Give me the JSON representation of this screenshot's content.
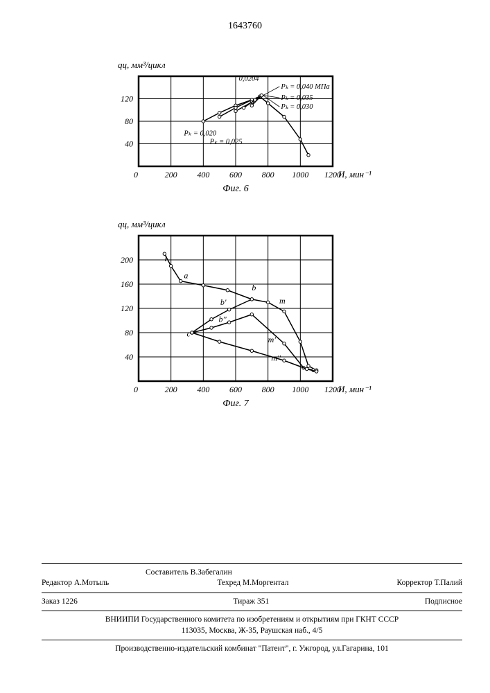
{
  "page_number": "1643760",
  "fig6": {
    "ylabel": "qц, мм³/цикл",
    "xlabel": "И, мин⁻¹",
    "caption": "Фиг. 6",
    "xlim": [
      0,
      1200
    ],
    "ylim": [
      0,
      160
    ],
    "xticks": [
      0,
      200,
      400,
      600,
      800,
      1000,
      1200
    ],
    "yticks": [
      40,
      80,
      120
    ],
    "grid_color": "#000000",
    "line_color": "#000000",
    "marker_radius": 2.2,
    "series": {
      "p020": {
        "label": "Pₖ = 0,020",
        "points": [
          [
            400,
            80
          ],
          [
            500,
            95
          ],
          [
            600,
            108
          ],
          [
            700,
            118
          ],
          [
            750,
            124
          ],
          [
            800,
            112
          ],
          [
            900,
            88
          ],
          [
            1000,
            48
          ],
          [
            1050,
            20
          ]
        ]
      },
      "p025": {
        "label": "Pₖ = 0,025",
        "points": [
          [
            500,
            88
          ],
          [
            600,
            104
          ],
          [
            700,
            118
          ],
          [
            750,
            124
          ]
        ]
      },
      "p030": {
        "label": "Pₖ = 0,030",
        "points": [
          [
            600,
            98
          ],
          [
            700,
            114
          ],
          [
            750,
            124
          ]
        ]
      },
      "p035": {
        "label": "Pₖ = 0,035",
        "points": [
          [
            650,
            104
          ],
          [
            720,
            118
          ],
          [
            760,
            126
          ]
        ]
      },
      "p040": {
        "label": "Pₖ = 0,040 МПа",
        "points": [
          [
            700,
            108
          ],
          [
            760,
            126
          ]
        ]
      }
    },
    "topnote": "0,0204",
    "label_positions": {
      "p020": [
        280,
        55
      ],
      "p025": [
        440,
        40
      ],
      "topnote": [
        620,
        152
      ],
      "p040": [
        880,
        138
      ],
      "p035": [
        880,
        118
      ],
      "p030": [
        880,
        102
      ]
    }
  },
  "fig7": {
    "ylabel": "qц, мм³/цикл",
    "xlabel": "И, мин⁻¹",
    "caption": "Фиг. 7",
    "xlim": [
      0,
      1200
    ],
    "ylim": [
      0,
      240
    ],
    "xticks": [
      0,
      200,
      400,
      600,
      800,
      1000,
      1200
    ],
    "yticks": [
      40,
      80,
      120,
      160,
      200
    ],
    "grid_color": "#000000",
    "line_color": "#000000",
    "marker_radius": 2.2,
    "series": {
      "main": {
        "points": [
          [
            160,
            210
          ],
          [
            200,
            190
          ],
          [
            260,
            165
          ],
          [
            400,
            158
          ],
          [
            550,
            150
          ],
          [
            700,
            135
          ],
          [
            800,
            130
          ],
          [
            900,
            115
          ],
          [
            1000,
            65
          ],
          [
            1050,
            25
          ],
          [
            1100,
            18
          ]
        ]
      },
      "bp": {
        "points": [
          [
            330,
            80
          ],
          [
            450,
            102
          ],
          [
            560,
            118
          ],
          [
            700,
            135
          ]
        ]
      },
      "bpp": {
        "points": [
          [
            330,
            80
          ],
          [
            450,
            88
          ],
          [
            560,
            97
          ],
          [
            700,
            110
          ],
          [
            900,
            62
          ],
          [
            1020,
            22
          ],
          [
            1080,
            18
          ]
        ]
      },
      "c": {
        "points": [
          [
            330,
            80
          ],
          [
            500,
            65
          ],
          [
            700,
            50
          ],
          [
            900,
            34
          ],
          [
            1040,
            20
          ],
          [
            1100,
            16
          ]
        ]
      }
    },
    "point_labels": {
      "a": [
        280,
        170
      ],
      "b": [
        700,
        150
      ],
      "b'": [
        505,
        126
      ],
      "b''": [
        495,
        98
      ],
      "c": [
        298,
        74
      ],
      "m": [
        870,
        128
      ],
      "m'": [
        800,
        64
      ],
      "m''": [
        820,
        34
      ],
      "l": [
        160,
        198
      ]
    }
  },
  "footer": {
    "editor_label": "Редактор",
    "editor_name": "А.Мотыль",
    "compiler_label": "Составитель",
    "compiler_name": "В.Забегалин",
    "techred_label": "Техред",
    "techred_name": "М.Моргентал",
    "corrector_label": "Корректор",
    "corrector_name": "Т.Палий",
    "order_label": "Заказ",
    "order_num": "1226",
    "tirazh_label": "Тираж",
    "tirazh_num": "351",
    "subscribe": "Подписное",
    "org1": "ВНИИПИ Государственного комитета по изобретениям и открытиям при ГКНТ СССР",
    "addr1": "113035, Москва, Ж-35, Раушская наб., 4/5",
    "org2": "Производственно-издательский комбинат \"Патент\", г. Ужгород, ул.Гагарина, 101"
  }
}
